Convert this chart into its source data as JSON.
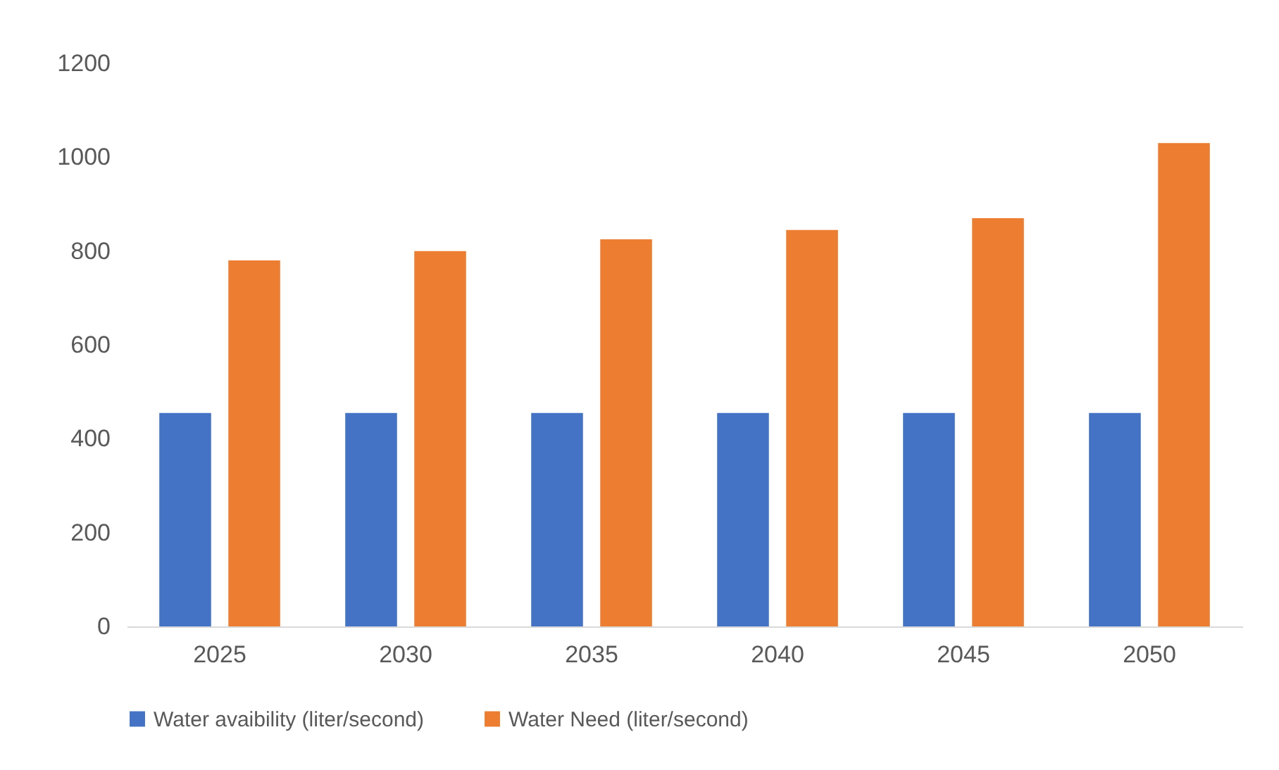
{
  "chart_data": {
    "type": "bar",
    "categories": [
      "2025",
      "2030",
      "2035",
      "2040",
      "2045",
      "2050"
    ],
    "series": [
      {
        "name": "Water avaibility (liter/second)",
        "color": "#4472c4",
        "values": [
          455,
          455,
          455,
          455,
          455,
          455
        ]
      },
      {
        "name": "Water Need (liter/second)",
        "color": "#ed7d31",
        "values": [
          780,
          800,
          825,
          845,
          870,
          1030
        ]
      }
    ],
    "ylim": [
      0,
      1200
    ],
    "yticks": [
      0,
      200,
      400,
      600,
      800,
      1000,
      1200
    ],
    "grid": false,
    "legend": "bottom"
  }
}
